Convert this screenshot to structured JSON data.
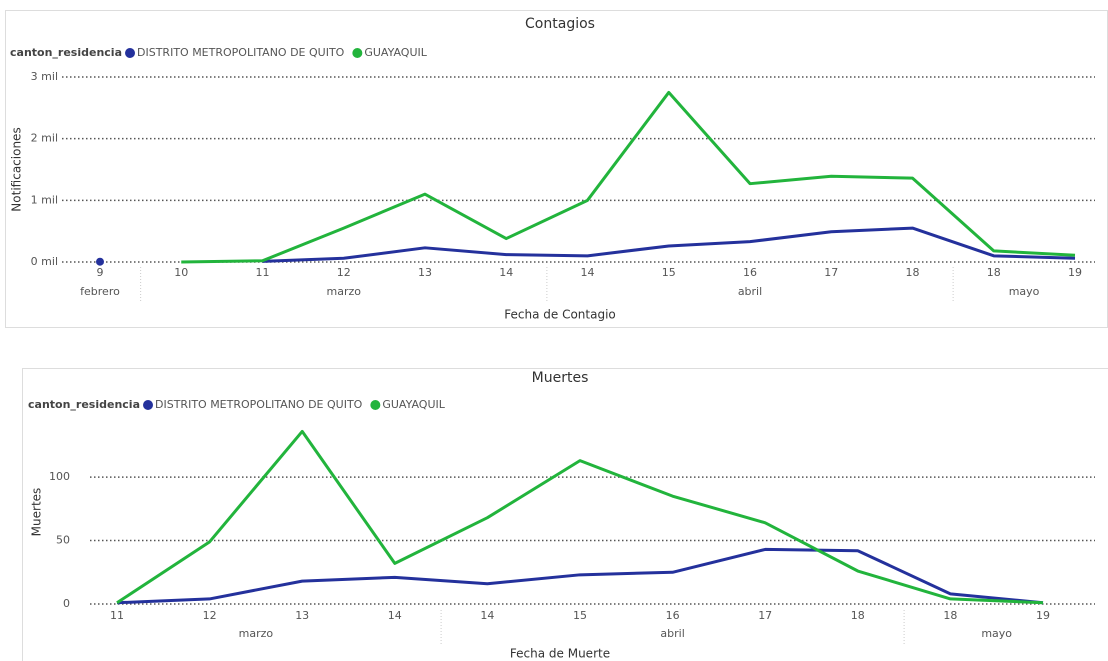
{
  "chart_data": [
    {
      "type": "line",
      "title": "Contagios",
      "legend_title": "canton_residencia",
      "x_label": "Fecha de Contagio",
      "y_label": "Notificaciones",
      "categories": [
        "9",
        "10",
        "11",
        "12",
        "13",
        "14",
        "14",
        "15",
        "16",
        "17",
        "18",
        "18",
        "19"
      ],
      "groups": [
        {
          "label": "febrero",
          "size": 1
        },
        {
          "label": "marzo",
          "size": 5
        },
        {
          "label": "abril",
          "size": 5
        },
        {
          "label": "mayo",
          "size": 2
        }
      ],
      "series": [
        {
          "name": "DISTRITO METROPOLITANO DE QUITO",
          "color": "#24319c",
          "values": [
            5,
            null,
            10,
            60,
            230,
            120,
            100,
            260,
            330,
            490,
            550,
            100,
            60
          ]
        },
        {
          "name": "GUAYAQUIL",
          "color": "#22b43c",
          "values": [
            null,
            0,
            20,
            550,
            1100,
            380,
            1000,
            2750,
            1270,
            1390,
            1360,
            180,
            110
          ]
        }
      ],
      "ylim": [
        0,
        3000
      ],
      "yticks": [
        {
          "value": 0,
          "label": "0 mil"
        },
        {
          "value": 1000,
          "label": "1 mil"
        },
        {
          "value": 2000,
          "label": "2 mil"
        },
        {
          "value": 3000,
          "label": "3 mil"
        }
      ],
      "grid": true
    },
    {
      "type": "line",
      "title": "Muertes",
      "legend_title": "canton_residencia",
      "x_label": "Fecha de Muerte",
      "y_label": "Muertes",
      "categories": [
        "11",
        "12",
        "13",
        "14",
        "14",
        "15",
        "16",
        "17",
        "18",
        "18",
        "19"
      ],
      "groups": [
        {
          "label": "marzo",
          "size": 4
        },
        {
          "label": "abril",
          "size": 5
        },
        {
          "label": "mayo",
          "size": 2
        }
      ],
      "series": [
        {
          "name": "DISTRITO METROPOLITANO DE QUITO",
          "color": "#24319c",
          "values": [
            1,
            4,
            18,
            21,
            16,
            23,
            25,
            43,
            42,
            8,
            1
          ]
        },
        {
          "name": "GUAYAQUIL",
          "color": "#22b43c",
          "values": [
            1,
            49,
            136,
            32,
            68,
            113,
            85,
            64,
            26,
            4,
            1
          ]
        }
      ],
      "ylim": [
        0,
        145
      ],
      "yticks": [
        0,
        50,
        100
      ],
      "grid": true
    }
  ]
}
